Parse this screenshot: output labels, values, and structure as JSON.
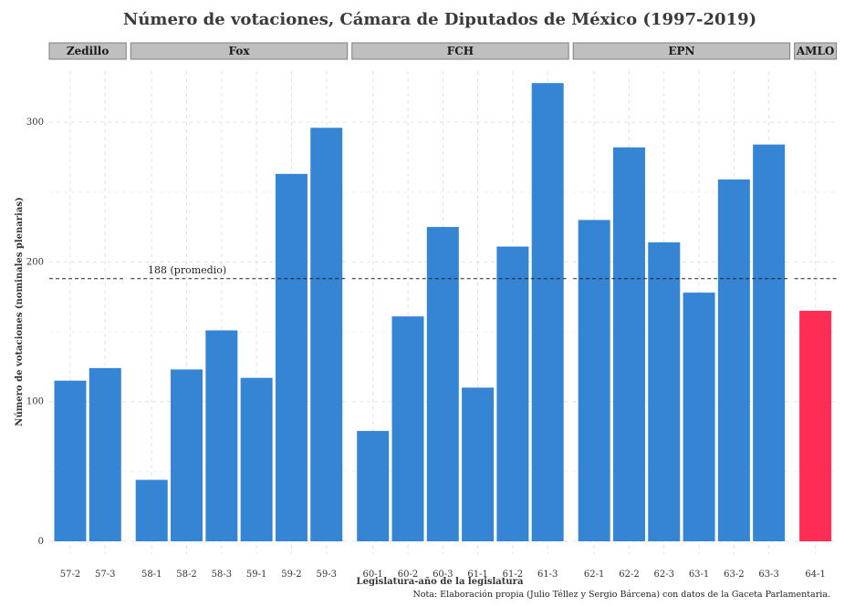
{
  "chart_data": {
    "type": "bar",
    "title": "Número de votaciones, Cámara de Diputados de México (1997-2019)",
    "xlabel": "Legislatura-año de la legislatura",
    "ylabel": "Número de votaciones (nominales plenarias)",
    "note": "Nota: Elaboración propia (Julio Téllez y Sergio Bárcena) con datos de la Gaceta Parlamentaria.",
    "ylim": [
      0,
      335
    ],
    "yticks": [
      0,
      100,
      200,
      300
    ],
    "grid": true,
    "average_line": {
      "value": 188,
      "label": "188 (promedio)"
    },
    "colors": {
      "default": "#3585d4",
      "highlight": "#ff2d55",
      "strip": "#bfbfbf"
    },
    "panels": [
      {
        "name": "Zedillo",
        "categories": [
          "57-2",
          "57-3"
        ],
        "values": [
          115,
          124
        ]
      },
      {
        "name": "Fox",
        "categories": [
          "58-1",
          "58-2",
          "58-3",
          "59-1",
          "59-2",
          "59-3"
        ],
        "values": [
          44,
          123,
          151,
          117,
          263,
          296
        ]
      },
      {
        "name": "FCH",
        "categories": [
          "60-1",
          "60-2",
          "60-3",
          "61-1",
          "61-2",
          "61-3"
        ],
        "values": [
          79,
          161,
          225,
          110,
          211,
          328
        ]
      },
      {
        "name": "EPN",
        "categories": [
          "62-1",
          "62-2",
          "62-3",
          "63-1",
          "63-2",
          "63-3"
        ],
        "values": [
          230,
          282,
          214,
          178,
          259,
          284
        ]
      },
      {
        "name": "AMLO",
        "categories": [
          "64-1"
        ],
        "values": [
          165
        ],
        "highlight": true
      }
    ]
  }
}
